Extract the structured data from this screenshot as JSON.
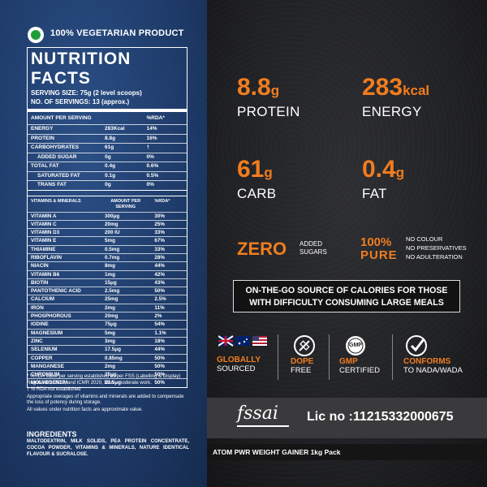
{
  "left": {
    "veg_label": "100% VEGETARIAN PRODUCT",
    "title": "NUTRITION FACTS",
    "serving_size": "SERVING SIZE: 75g (2 level scoops)",
    "servings": "NO. OF SERVINGS: 13 (approx.)",
    "headers": {
      "c1": "AMOUNT PER SERVING",
      "c2": "",
      "c3": "%RDA*"
    },
    "rows": [
      {
        "name": "ENERGY",
        "amount": "283Kcal",
        "rda": "14%",
        "indent": false
      },
      {
        "name": "PROTEIN",
        "amount": "8.8g",
        "rda": "16%",
        "indent": false
      },
      {
        "name": "CARBOHYDRATES",
        "amount": "61g",
        "rda": "†",
        "indent": false
      },
      {
        "name": "ADDED SUGAR",
        "amount": "0g",
        "rda": "0%",
        "indent": true
      },
      {
        "name": "TOTAL FAT",
        "amount": "0.4g",
        "rda": "0.6%",
        "indent": false
      },
      {
        "name": "SATURATED FAT",
        "amount": "0.1g",
        "rda": "0.5%",
        "indent": true
      },
      {
        "name": "TRANS FAT",
        "amount": "0g",
        "rda": "0%",
        "indent": true
      }
    ],
    "mineral_headers": {
      "c1": "VITAMINS & MINERALS",
      "c2": "AMOUNT PER SERVING",
      "c3": "%RDA*"
    },
    "minerals": [
      {
        "name": "VITAMIN A",
        "amount": "300μg",
        "rda": "30%"
      },
      {
        "name": "VITAMIN C",
        "amount": "20mg",
        "rda": "25%"
      },
      {
        "name": "VITAMIN D3",
        "amount": "200 IU",
        "rda": "33%"
      },
      {
        "name": "VITAMIN E",
        "amount": "5mg",
        "rda": "67%"
      },
      {
        "name": "THIAMINE",
        "amount": "0.5mg",
        "rda": "33%"
      },
      {
        "name": "RIBOFLAVIN",
        "amount": "0.7mg",
        "rda": "28%"
      },
      {
        "name": "NIACIN",
        "amount": "8mg",
        "rda": "44%"
      },
      {
        "name": "VITAMIN B6",
        "amount": "1mg",
        "rda": "42%"
      },
      {
        "name": "BIOTIN",
        "amount": "15μg",
        "rda": "43%"
      },
      {
        "name": "PANTOTHENIC ACID",
        "amount": "2.5mg",
        "rda": "50%"
      },
      {
        "name": "CALCIUM",
        "amount": "25mg",
        "rda": "2.5%"
      },
      {
        "name": "IRON",
        "amount": "2mg",
        "rda": "11%"
      },
      {
        "name": "PHOSPHOROUS",
        "amount": "20mg",
        "rda": "2%"
      },
      {
        "name": "IODINE",
        "amount": "75μg",
        "rda": "54%"
      },
      {
        "name": "MAGNESIUM",
        "amount": "5mg",
        "rda": "1.1%"
      },
      {
        "name": "ZINC",
        "amount": "3mg",
        "rda": "18%"
      },
      {
        "name": "SELENIUM",
        "amount": "17.5μg",
        "rda": "44%"
      },
      {
        "name": "COPPER",
        "amount": "0.85mg",
        "rda": "50%"
      },
      {
        "name": "MANGANESE",
        "amount": "2mg",
        "rda": "50%"
      },
      {
        "name": "CHROMIUM",
        "amount": "25μg",
        "rda": "50%"
      },
      {
        "name": "MOLYBDENUM",
        "amount": "22.5μg",
        "rda": "50%"
      }
    ],
    "notes": [
      "* %RDA value per serving established as per FSS (Labelling & Display) Regulations 2020, and ICMR 2020, Men - moderate work.",
      "† % RDA not established",
      "Appropriate overages of vitamins and minerals are added to compensate the loss of potency during storage.",
      "All values under nutrition facts are approximate value."
    ],
    "ingredients_title": "INGREDIENTS",
    "ingredients": "MALTODEXTRIN, MILK SOLIDS, PEA PROTEIN CONCENTRATE, COCOA POWDER, VITAMINS & MINERALS, NATURE IDENTICAL FLAVOUR & SUCRALOSE."
  },
  "stats": [
    {
      "value": "8.8",
      "unit": "g",
      "label": "PROTEIN"
    },
    {
      "value": "283",
      "unit": "kcal",
      "label": "ENERGY"
    },
    {
      "value": "61",
      "unit": "g",
      "label": "CARB"
    },
    {
      "value": "0.4",
      "unit": "g",
      "label": "FAT"
    }
  ],
  "zero": {
    "big": "ZERO",
    "line1": "ADDED",
    "line2": "SUGARS"
  },
  "pure": {
    "line1": "100%",
    "line2": "PURE",
    "items": [
      "NO COLOUR",
      "NO PRESERVATIVES",
      "NO ADULTERATION"
    ]
  },
  "ribbon": {
    "line1": "ON-THE-GO SOURCE OF CALORIES FOR THOSE",
    "line2": "WITH DIFFICULTY CONSUMING LARGE MEALS"
  },
  "badges": [
    {
      "t1": "GLOBALLY",
      "t2": "SOURCED",
      "icon": "flags-icon"
    },
    {
      "t1": "DOPE",
      "t2": "FREE",
      "icon": "no-syringe-icon"
    },
    {
      "t1": "GMP",
      "t2": "CERTIFIED",
      "icon": "gmp-seal-icon",
      "seal_text": "GMP"
    },
    {
      "t1": "CONFORMS",
      "t2": "TO NADA/WADA",
      "icon": "check-circle-icon"
    }
  ],
  "license": "Lic no :11215332000675",
  "pack_name": "ATOM PWR WEIGHT GAINER 1kg Pack",
  "colors": {
    "accent": "#f07d1f",
    "denim": "#1d3b6b",
    "dark": "#1e1e20"
  }
}
